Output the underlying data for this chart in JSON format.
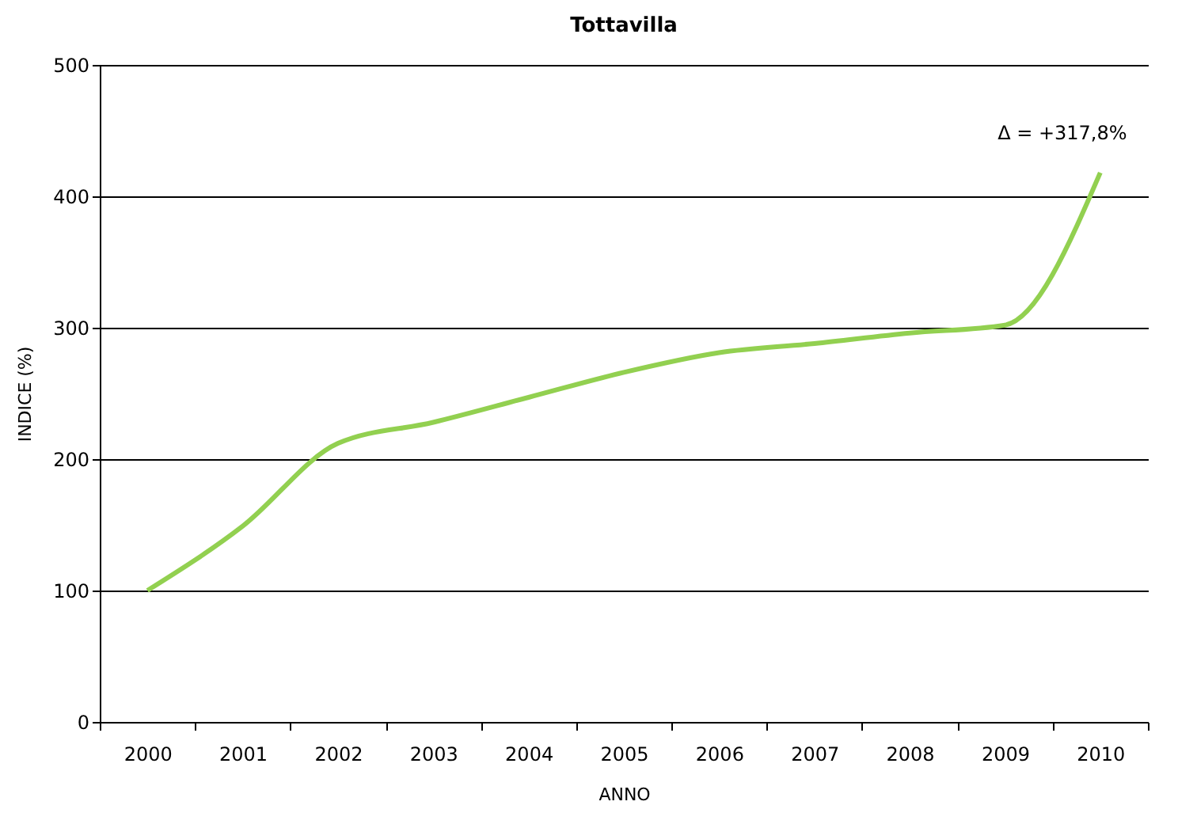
{
  "chart_data": {
    "type": "line",
    "title": "Tottavilla",
    "xlabel": "ANNO",
    "ylabel": "INDICE (%)",
    "categories": [
      "2000",
      "2001",
      "2002",
      "2003",
      "2004",
      "2005",
      "2006",
      "2007",
      "2008",
      "2009",
      "2010"
    ],
    "series": [
      {
        "color": "#92d050",
        "values": [
          100,
          149,
          212,
          228,
          247,
          266,
          281,
          288,
          296,
          302,
          418
        ]
      }
    ],
    "ylim": [
      0,
      500
    ],
    "yticks": [
      0,
      100,
      200,
      300,
      400,
      500
    ],
    "grid": "y",
    "marker": "none",
    "annotations": [
      {
        "text": "Δ = +317,8%",
        "x": "2010",
        "y": 418
      }
    ]
  }
}
